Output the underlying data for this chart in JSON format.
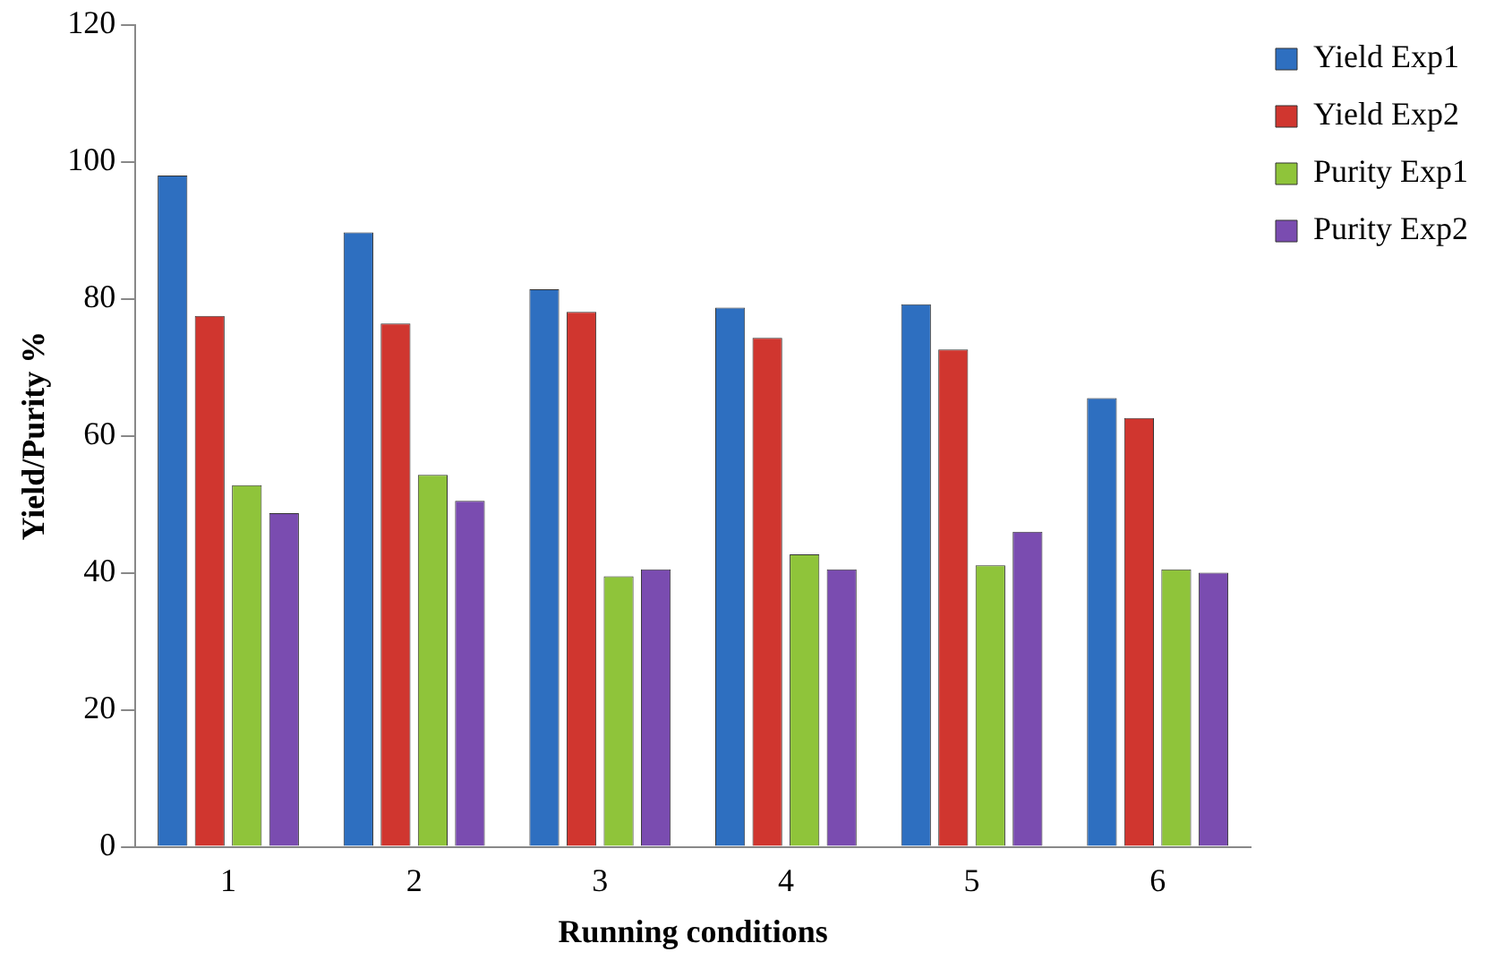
{
  "chart_data": {
    "type": "bar",
    "xlabel": "Running conditions",
    "ylabel": "Yield/Purity %",
    "categories": [
      "1",
      "2",
      "3",
      "4",
      "5",
      "6"
    ],
    "series": [
      {
        "name": "Yield Exp1",
        "color": "#2e6fc0",
        "values": [
          98.0,
          89.7,
          81.4,
          78.7,
          79.2,
          65.5
        ]
      },
      {
        "name": "Yield Exp2",
        "color": "#d0362f",
        "values": [
          77.5,
          76.4,
          78.1,
          74.3,
          72.6,
          62.6
        ]
      },
      {
        "name": "Purity Exp1",
        "color": "#8fc43a",
        "values": [
          52.8,
          54.3,
          39.5,
          42.7,
          41.1,
          40.5
        ]
      },
      {
        "name": "Purity Exp2",
        "color": "#7a4cb0",
        "values": [
          48.7,
          50.5,
          40.5,
          40.5,
          46.0,
          40.0
        ]
      }
    ],
    "ylim": [
      0,
      120
    ],
    "yticks": [
      0,
      20,
      40,
      60,
      80,
      100,
      120
    ],
    "grid": false,
    "legend": "top right"
  }
}
